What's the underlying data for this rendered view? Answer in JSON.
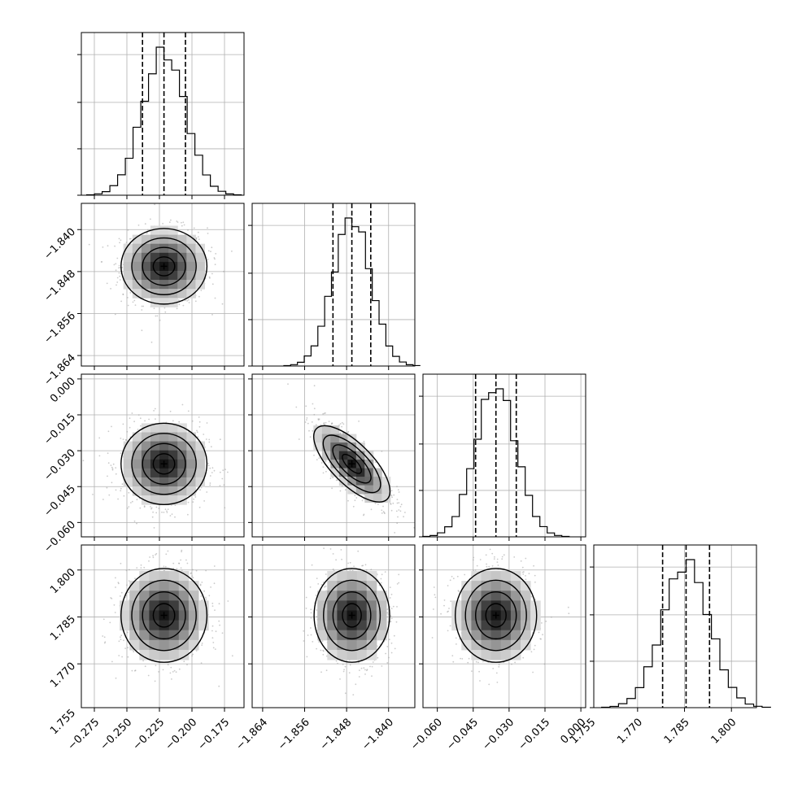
{
  "chart_data": {
    "type": "corner",
    "title": "",
    "grid": true,
    "colors": {
      "line": "#000000",
      "grid": "#b0b0b0",
      "background": "#ffffff",
      "point": "#a0a0a0"
    },
    "quantiles": [
      0.16,
      0.5,
      0.84
    ],
    "parameters": [
      {
        "label": "",
        "range": [
          -0.285,
          -0.16
        ],
        "ticks": [
          "−0.275",
          "−0.250",
          "−0.225",
          "−0.200",
          "−0.175"
        ],
        "tick_values": [
          -0.275,
          -0.25,
          -0.225,
          -0.2,
          -0.175
        ],
        "mean": -0.2215,
        "sigma": 0.0165,
        "quantile_values": [
          -0.238,
          -0.2215,
          -0.205
        ]
      },
      {
        "label": "",
        "range": [
          -1.866,
          -1.835
        ],
        "ticks": [
          "−1.864",
          "−1.856",
          "−1.848",
          "−1.840"
        ],
        "tick_values": [
          -1.864,
          -1.856,
          -1.848,
          -1.84
        ],
        "mean": -1.847,
        "sigma": 0.0036,
        "quantile_values": [
          -1.8506,
          -1.847,
          -1.8434
        ]
      },
      {
        "label": "",
        "range": [
          -0.066,
          0.002
        ],
        "ticks": [
          "−0.060",
          "−0.045",
          "−0.030",
          "−0.015",
          "0.000"
        ],
        "tick_values": [
          -0.06,
          -0.045,
          -0.03,
          -0.015,
          0.0
        ],
        "mean": -0.0355,
        "sigma": 0.0085,
        "quantile_values": [
          -0.044,
          -0.0355,
          -0.027
        ]
      },
      {
        "label": "",
        "range": [
          1.756,
          1.808
        ],
        "ticks": [
          "1.755",
          "1.770",
          "1.785",
          "1.800"
        ],
        "tick_values": [
          1.755,
          1.77,
          1.785,
          1.8
        ],
        "mean": 1.7855,
        "sigma": 0.0075,
        "quantile_values": [
          1.778,
          1.7855,
          1.793
        ]
      }
    ],
    "correlations": {
      "1-0": 0.0,
      "2-0": 0.0,
      "2-1": -0.75,
      "3-0": 0.0,
      "3-1": 0.0,
      "3-2": 0.0
    },
    "histogram_bins": 20,
    "contour_levels_sigma": [
      0.5,
      1.0,
      1.5,
      2.0
    ],
    "scatter_points_per_panel": 900
  }
}
